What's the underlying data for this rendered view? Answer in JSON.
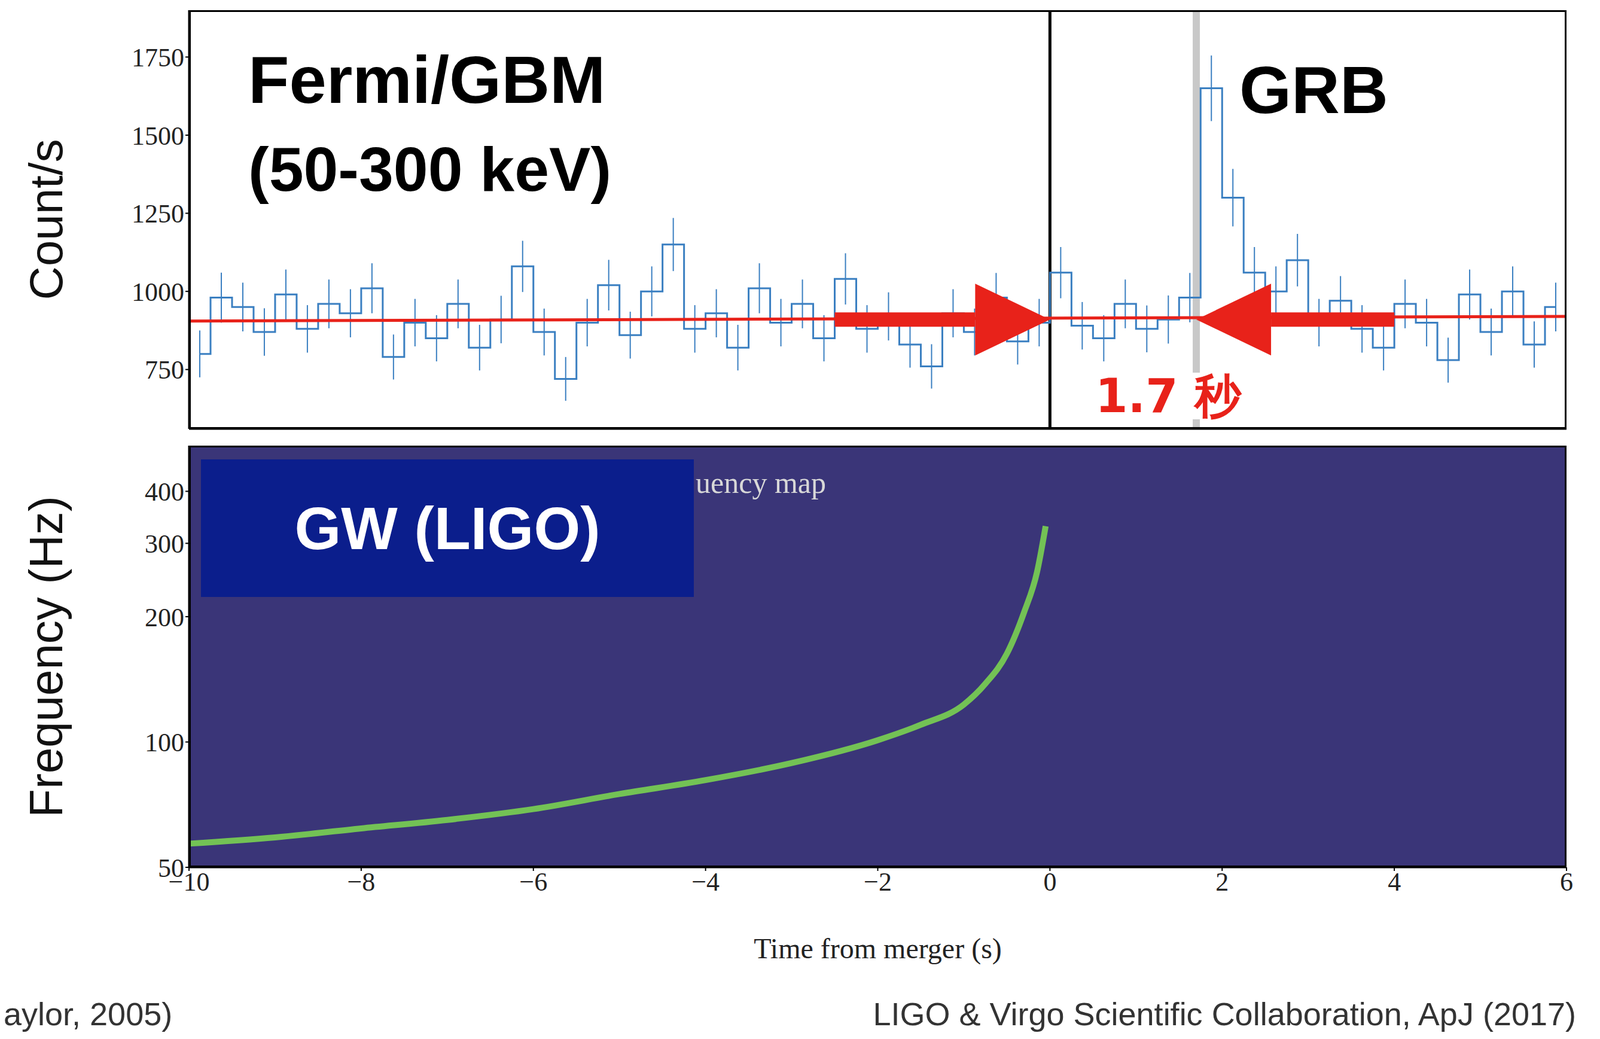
{
  "chart_data": [
    {
      "type": "line",
      "title": "Fermi/GBM",
      "subtitle": "(50-300 keV)",
      "y_label": "Count/s",
      "x": [
        -9.875,
        -9.625,
        -9.375,
        -9.125,
        -8.875,
        -8.625,
        -8.375,
        -8.125,
        -7.875,
        -7.625,
        -7.375,
        -7.125,
        -6.875,
        -6.625,
        -6.375,
        -6.125,
        -5.875,
        -5.625,
        -5.375,
        -5.125,
        -4.875,
        -4.625,
        -4.375,
        -4.125,
        -3.875,
        -3.625,
        -3.375,
        -3.125,
        -2.875,
        -2.625,
        -2.375,
        -2.125,
        -1.875,
        -1.625,
        -1.375,
        -1.125,
        -0.875,
        -0.625,
        -0.375,
        -0.125,
        0.125,
        0.375,
        0.625,
        0.875,
        1.125,
        1.375,
        1.625,
        1.875,
        2.125,
        2.375,
        2.625,
        2.875,
        3.125,
        3.375,
        3.625,
        3.875,
        4.125,
        4.375,
        4.625,
        4.875,
        5.125,
        5.375,
        5.625,
        5.875
      ],
      "values": [
        800,
        980,
        950,
        870,
        990,
        880,
        960,
        930,
        1010,
        790,
        900,
        850,
        960,
        820,
        910,
        1080,
        870,
        720,
        900,
        1020,
        860,
        1000,
        1150,
        880,
        930,
        820,
        1010,
        900,
        960,
        850,
        1040,
        880,
        920,
        830,
        760,
        930,
        870,
        980,
        840,
        900,
        1060,
        890,
        850,
        960,
        880,
        910,
        980,
        1650,
        1300,
        1060,
        1000,
        1100,
        900,
        970,
        880,
        820,
        960,
        900,
        780,
        990,
        870,
        1000,
        830,
        950
      ],
      "errors": [
        75,
        80,
        78,
        76,
        80,
        76,
        78,
        77,
        80,
        72,
        76,
        74,
        78,
        73,
        76,
        82,
        75,
        70,
        76,
        81,
        75,
        80,
        85,
        76,
        77,
        73,
        80,
        76,
        78,
        74,
        82,
        76,
        77,
        74,
        71,
        77,
        75,
        79,
        74,
        76,
        82,
        76,
        74,
        78,
        75,
        77,
        79,
        105,
        92,
        82,
        80,
        84,
        76,
        79,
        76,
        73,
        78,
        76,
        72,
        80,
        75,
        80,
        74,
        78
      ],
      "color": "#3a7fc1",
      "line_style": "step",
      "background": {
        "x": [
          -10,
          6
        ],
        "values": [
          905,
          920
        ],
        "color": "#e8221a"
      },
      "vlines": [
        {
          "x": 0,
          "color": "#000000"
        },
        {
          "x": 1.7,
          "color": "#c8c8c8"
        }
      ],
      "arrows": [
        {
          "x": [
            -2.5,
            0
          ],
          "y": 910,
          "color": "#e8221a"
        },
        {
          "x": [
            4,
            1.7
          ],
          "y": 910,
          "color": "#e8221a"
        }
      ],
      "annotations": [
        {
          "text": "GRB",
          "color": "#000000"
        },
        {
          "text": "1.7 秒",
          "color": "#e8221a"
        }
      ],
      "xlim": [
        -10,
        6
      ],
      "ylim": [
        560,
        1900
      ],
      "yticks": [
        750,
        1000,
        1250,
        1500,
        1750
      ],
      "tick_labels": "y"
    },
    {
      "type": "line",
      "title": "GW (LIGO)",
      "annotations": [
        {
          "text": "uency map",
          "color": "#d8d8d8"
        }
      ],
      "x_label": "Time from merger (s)",
      "y_label": "Frequency (Hz)",
      "x": [
        -10,
        -9,
        -8,
        -7,
        -6,
        -5,
        -4,
        -3,
        -2,
        -1.5,
        -1,
        -0.75,
        -0.5,
        -0.3,
        -0.15,
        -0.05
      ],
      "values": [
        57,
        59,
        62,
        65,
        69,
        75,
        81,
        89,
        101,
        110,
        123,
        138,
        163,
        205,
        256,
        330
      ],
      "color": "#7ad151",
      "log": "y",
      "xlim": [
        -10,
        6
      ],
      "xticks": [
        {
          "value": -10,
          "label": "−10"
        },
        {
          "value": -8,
          "label": "−8"
        },
        {
          "value": -6,
          "label": "−6"
        },
        {
          "value": -4,
          "label": "−4"
        },
        {
          "value": -2,
          "label": "−2"
        },
        0,
        2,
        4,
        6
      ],
      "ylim": [
        50,
        515
      ],
      "yticks": [
        50,
        100,
        200,
        300,
        400
      ]
    }
  ],
  "footer": {
    "left": "aylor, 2005)",
    "right": "LIGO & Virgo Scientific Collaboration, ApJ (2017)"
  }
}
